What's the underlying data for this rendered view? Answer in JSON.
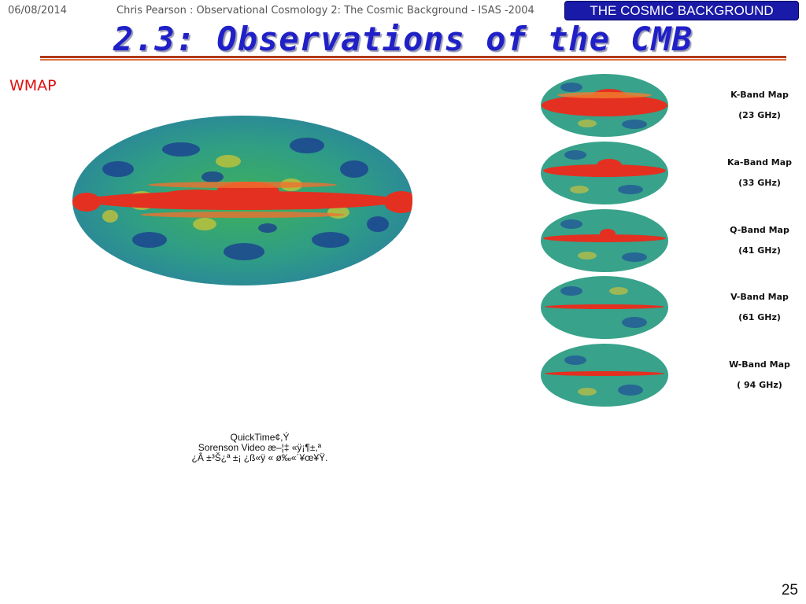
{
  "header": {
    "date": "06/08/2014",
    "author_course": "Chris Pearson :   Observational Cosmology 2: The Cosmic Background - ISAS -2004",
    "section_badge": "THE COSMIC BACKGROUND"
  },
  "title": "2.3: Observations of the CMB",
  "section_label": "WMAP",
  "bands": [
    {
      "name": "K-Band Map",
      "freq": "(23 GHz)"
    },
    {
      "name": "Ka-Band Map",
      "freq": "(33 GHz)"
    },
    {
      "name": "Q-Band Map",
      "freq": "(41 GHz)"
    },
    {
      "name": "V-Band Map",
      "freq": "(61 GHz)"
    },
    {
      "name": "W-Band Map",
      "freq": "( 94 GHz)"
    }
  ],
  "quicktime_notice": {
    "line1": "QuickTime¢,Ý",
    "line2": "Sorenson Video æ–¦‡ «ÿ¡¶±,ª",
    "line3": "¿Â ±³Š¿ª ±¡ ¿ß«ÿ « ø‰«´¥œ¥Ÿ."
  },
  "page_number": "25",
  "colors": {
    "title": "#2020c8",
    "badge_bg": "#1a1aa8",
    "rule": "#b03a1a",
    "section_label": "#e01010"
  }
}
